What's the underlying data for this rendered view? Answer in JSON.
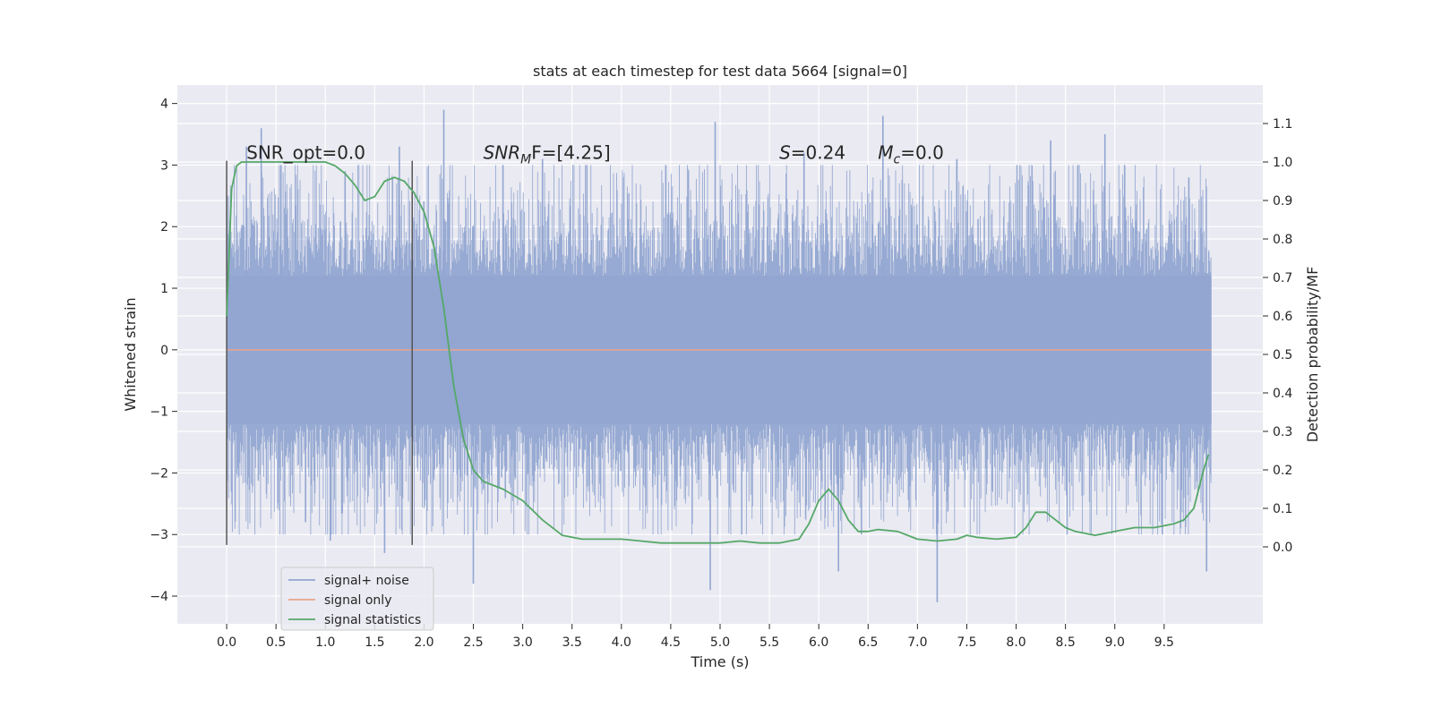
{
  "chart_data": {
    "type": "line",
    "title": "stats at each timestep for test data 5664 [signal=0]",
    "xlabel": "Time (s)",
    "ylabel": "Whitened strain",
    "y2label": "Detection probability/MF",
    "xlim": [
      -0.5,
      10.5
    ],
    "ylim": [
      -4.45,
      4.3
    ],
    "y2lim": [
      -0.2,
      1.2
    ],
    "xticks": [
      "0.0",
      "0.5",
      "1.0",
      "1.5",
      "2.0",
      "2.5",
      "3.0",
      "3.5",
      "4.0",
      "4.5",
      "5.0",
      "5.5",
      "6.0",
      "6.5",
      "7.0",
      "7.5",
      "8.0",
      "8.5",
      "9.0",
      "9.5"
    ],
    "yticks": [
      "−4",
      "−3",
      "−2",
      "−1",
      "0",
      "1",
      "2",
      "3",
      "4"
    ],
    "y2ticks": [
      "0.0",
      "0.1",
      "0.2",
      "0.3",
      "0.4",
      "0.5",
      "0.6",
      "0.7",
      "0.8",
      "0.9",
      "1.0",
      "1.1"
    ],
    "grid": true,
    "legend_position": "lower-left",
    "vertical_markers": [
      0.0,
      1.88
    ],
    "annotations": [
      {
        "id": "snr-opt",
        "text": "SNR_opt=0.0",
        "x": 0.2,
        "y": 3.1
      },
      {
        "id": "snr-mf",
        "base": "SNR",
        "sub": "M",
        "rest": "F=[4.25]",
        "x": 2.6,
        "y": 3.1
      },
      {
        "id": "s-stat",
        "base": "S",
        "sub": "",
        "rest": "=0.24",
        "x": 5.6,
        "y": 3.1
      },
      {
        "id": "mc",
        "base": "M",
        "sub": "c",
        "rest": "=0.0",
        "x": 6.6,
        "y": 3.1
      }
    ],
    "series": [
      {
        "name": "signal+ noise",
        "color": "#92a6d1",
        "axis": "left",
        "kind": "noise",
        "x_range": [
          0.0,
          9.98
        ],
        "envelope": 2.0,
        "peaks": [
          [
            0.2,
            3.3
          ],
          [
            0.35,
            3.6
          ],
          [
            0.55,
            3.0
          ],
          [
            0.8,
            -2.8
          ],
          [
            1.05,
            -3.1
          ],
          [
            1.2,
            2.9
          ],
          [
            1.6,
            -3.3
          ],
          [
            1.75,
            3.3
          ],
          [
            2.2,
            3.9
          ],
          [
            2.5,
            -3.8
          ],
          [
            2.8,
            3.0
          ],
          [
            3.2,
            3.1
          ],
          [
            4.45,
            3.0
          ],
          [
            4.9,
            -3.9
          ],
          [
            4.95,
            3.7
          ],
          [
            5.85,
            3.2
          ],
          [
            6.2,
            -3.6
          ],
          [
            6.65,
            3.8
          ],
          [
            7.2,
            -4.1
          ],
          [
            7.4,
            3.1
          ],
          [
            8.35,
            3.4
          ],
          [
            8.9,
            3.5
          ],
          [
            9.1,
            3.0
          ],
          [
            9.75,
            2.8
          ],
          [
            9.93,
            -3.6
          ]
        ]
      },
      {
        "name": "signal only",
        "color": "#e8a58a",
        "axis": "left",
        "kind": "line",
        "x": [
          0.0,
          9.98
        ],
        "y": [
          0.0,
          0.0
        ]
      },
      {
        "name": "signal statistics",
        "color": "#55a868",
        "axis": "right",
        "kind": "line",
        "x": [
          0.0,
          0.05,
          0.1,
          0.15,
          0.2,
          0.3,
          0.5,
          0.8,
          1.0,
          1.1,
          1.2,
          1.3,
          1.4,
          1.5,
          1.6,
          1.7,
          1.8,
          1.9,
          2.0,
          2.1,
          2.2,
          2.3,
          2.4,
          2.5,
          2.6,
          2.8,
          3.0,
          3.2,
          3.4,
          3.6,
          3.8,
          4.0,
          4.2,
          4.4,
          4.6,
          4.8,
          5.0,
          5.2,
          5.4,
          5.6,
          5.8,
          5.9,
          6.0,
          6.1,
          6.2,
          6.3,
          6.4,
          6.5,
          6.6,
          6.8,
          7.0,
          7.2,
          7.4,
          7.5,
          7.6,
          7.8,
          8.0,
          8.1,
          8.2,
          8.3,
          8.4,
          8.5,
          8.6,
          8.8,
          9.0,
          9.2,
          9.4,
          9.6,
          9.7,
          9.8,
          9.9,
          9.95
        ],
        "y": [
          0.6,
          0.93,
          0.99,
          1.0,
          1.0,
          1.0,
          1.0,
          1.0,
          1.0,
          0.99,
          0.97,
          0.94,
          0.9,
          0.91,
          0.95,
          0.96,
          0.95,
          0.92,
          0.87,
          0.78,
          0.62,
          0.42,
          0.28,
          0.2,
          0.17,
          0.15,
          0.12,
          0.07,
          0.03,
          0.02,
          0.02,
          0.02,
          0.015,
          0.01,
          0.01,
          0.01,
          0.01,
          0.015,
          0.01,
          0.01,
          0.02,
          0.06,
          0.12,
          0.15,
          0.12,
          0.07,
          0.04,
          0.04,
          0.045,
          0.04,
          0.02,
          0.015,
          0.02,
          0.03,
          0.025,
          0.02,
          0.025,
          0.05,
          0.09,
          0.09,
          0.07,
          0.05,
          0.04,
          0.03,
          0.04,
          0.05,
          0.05,
          0.06,
          0.07,
          0.1,
          0.2,
          0.24
        ]
      }
    ]
  }
}
